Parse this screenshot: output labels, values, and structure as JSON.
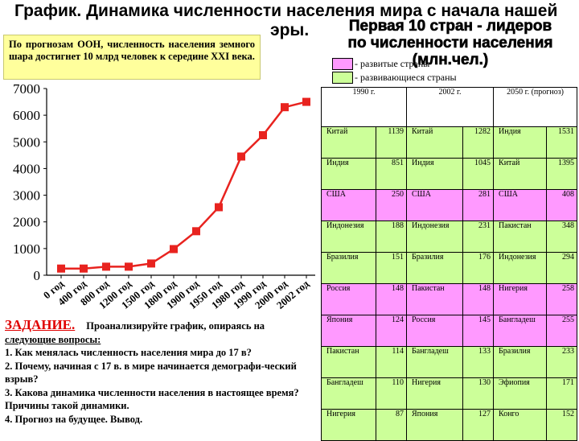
{
  "title": {
    "line1": "График. Динамика численности населения мира с начала нашей",
    "line2": "эры."
  },
  "note": "По прогнозам ООН, численность населения земного шара достигнет 10 млрд человек к середине XXI века.",
  "leaders": {
    "line1": "Первая 10 стран - лидеров",
    "line2": "по численности населения (млн.чел.)"
  },
  "legend": [
    {
      "label": "- развитые страны",
      "color": "#ff99ff"
    },
    {
      "label": "- развивающиеся страны",
      "color": "#ccff99"
    }
  ],
  "task": {
    "heading": "ЗАДАНИЕ.",
    "lead": "Проанализируйте график, опираясь на",
    "sub": "следующие вопросы:",
    "questions": [
      "1. Как менялась численность населения мира до 17 в?",
      "2. Почему, начиная с 17 в. в мире начинается демографи-ческий взрыв?",
      "3. Какова динамика численности населения в настоящее время? Причины такой динамики.",
      "4. Прогноз на будущее. Вывод."
    ]
  },
  "table": {
    "headers": [
      "1990 г.",
      "2002 г.",
      "2050 г. (прогноз)"
    ],
    "rows": [
      {
        "color": "#ccff99",
        "cells": [
          "Китай",
          "1139",
          "Китай",
          "1282",
          "Индия",
          "1531"
        ]
      },
      {
        "color": "#ccff99",
        "cells": [
          "Индия",
          "851",
          "Индия",
          "1045",
          "Китай",
          "1395"
        ]
      },
      {
        "color": "#ff99ff",
        "cells": [
          "США",
          "250",
          "США",
          "281",
          "США",
          "408"
        ]
      },
      {
        "color": "#ccff99",
        "cells": [
          "Индонезия",
          "188",
          "Индонезия",
          "231",
          "Пакистан",
          "348"
        ]
      },
      {
        "color": "#ccff99",
        "cells": [
          "Бразилия",
          "151",
          "Бразилия",
          "176",
          "Индонезия",
          "294"
        ]
      },
      {
        "color": "#ff99ff",
        "cells": [
          "Россия",
          "148",
          "Пакистан",
          "148",
          "Нигерия",
          "258"
        ]
      },
      {
        "color": "#ff99ff",
        "cells": [
          "Япония",
          "124",
          "Россия",
          "145",
          "Бангладеш",
          "255"
        ]
      },
      {
        "color": "#ccff99",
        "cells": [
          "Пакистан",
          "114",
          "Бангладеш",
          "133",
          "Бразилия",
          "233"
        ]
      },
      {
        "color": "#ccff99",
        "cells": [
          "Бангладеш",
          "110",
          "Нигерия",
          "130",
          "Эфиопия",
          "171"
        ]
      },
      {
        "color": "#ccff99",
        "cells": [
          "Нигерия",
          "87",
          "Япония",
          "127",
          "Конго",
          "152"
        ]
      }
    ]
  },
  "chart_data": {
    "type": "line",
    "title": "",
    "xlabel": "",
    "ylabel": "",
    "categories": [
      "0 год",
      "400 год",
      "800 год",
      "1200 год",
      "1500 год",
      "1800 год",
      "1900 год",
      "1950 год",
      "1980 год",
      "1990 год",
      "2000 год",
      "2002 год"
    ],
    "values": [
      250,
      250,
      320,
      320,
      440,
      980,
      1650,
      2550,
      4450,
      5250,
      6300,
      6500
    ],
    "yticks": [
      0,
      1000,
      2000,
      3000,
      4000,
      5000,
      6000,
      7000
    ],
    "ylim": [
      0,
      7000
    ],
    "grid": false,
    "line_color": "#e8231f"
  }
}
